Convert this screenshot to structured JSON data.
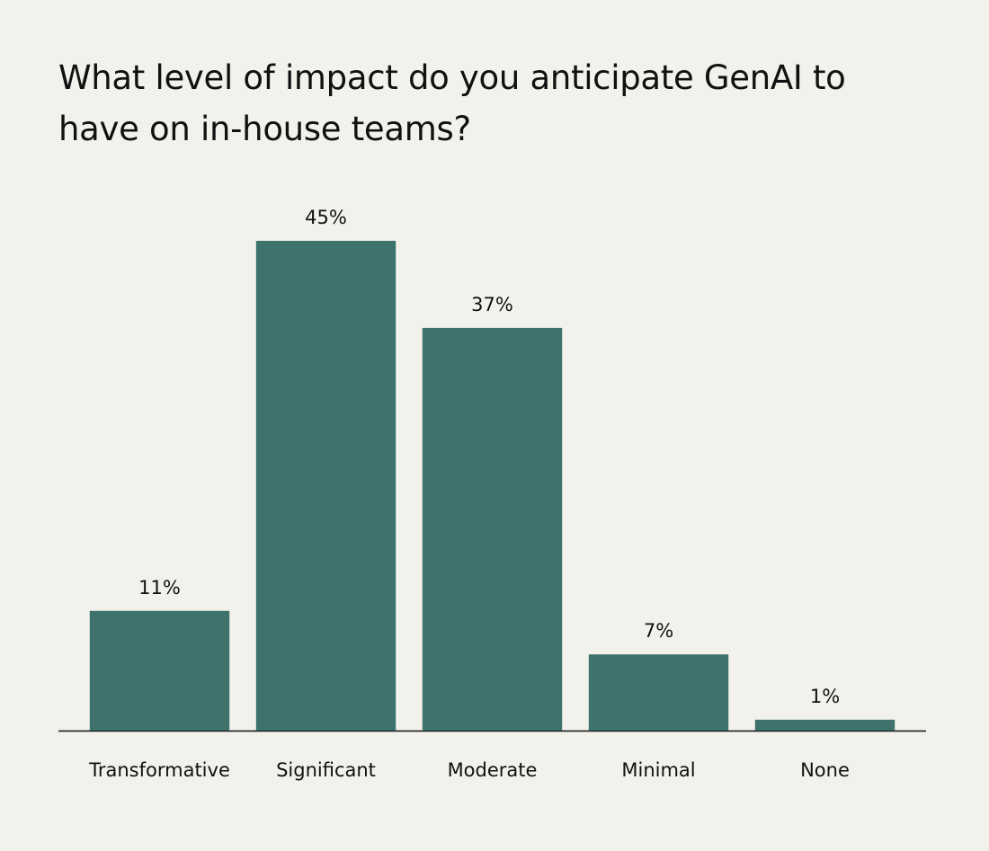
{
  "chart_data": {
    "type": "bar",
    "title": "What level of impact do you anticipate GenAI to have on in-house teams?",
    "categories": [
      "Transformative",
      "Significant",
      "Moderate",
      "Minimal",
      "None"
    ],
    "values": [
      11,
      45,
      37,
      7,
      1
    ],
    "value_labels": [
      "11%",
      "45%",
      "37%",
      "7%",
      "1%"
    ],
    "color": "#3d736c",
    "ylim": [
      0,
      45
    ]
  }
}
